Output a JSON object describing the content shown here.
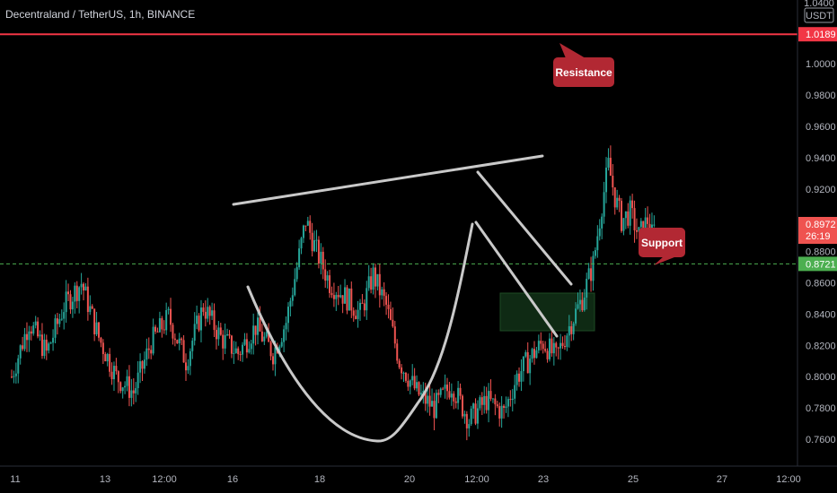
{
  "header": {
    "symbol_title": "Decentraland / TetherUS, 1h, BINANCE"
  },
  "price_axis": {
    "currency_label": "USDT",
    "top_partial_label": "1.0400",
    "ticks": [
      "1.0000",
      "0.9800",
      "0.9600",
      "0.9400",
      "0.9200",
      "0.8800",
      "0.8600",
      "0.8400",
      "0.8200",
      "0.8000",
      "0.7800",
      "0.7600"
    ]
  },
  "time_axis": {
    "ticks": [
      "11",
      "13",
      "12:00",
      "16",
      "18",
      "20",
      "12:00",
      "23",
      "25",
      "27",
      "12:00"
    ]
  },
  "tags": {
    "resistance_price": "1.0189",
    "last_price": "0.8972",
    "countdown": "26:19",
    "support_price": "0.8721"
  },
  "callouts": {
    "resistance": "Resistance",
    "support": "Support"
  },
  "colors": {
    "background": "#000000",
    "up_candle": "#26a69a",
    "down_candle": "#ef5350",
    "resistance_line": "#f23645",
    "support_line": "#4caf50",
    "callout_bg": "#b22833",
    "drawing_line": "#c9c9c9",
    "target_zone": "#0f2a14"
  },
  "chart_data": {
    "type": "candlestick",
    "title": "Decentraland / TetherUS, 1h, BINANCE",
    "ylabel": "USDT",
    "ylim": [
      0.75,
      1.04
    ],
    "x_ticks": [
      "11",
      "13",
      "12:00",
      "16",
      "18",
      "20",
      "12:00",
      "23",
      "25",
      "27",
      "12:00"
    ],
    "resistance_level": 1.0189,
    "support_level": 0.8721,
    "last_price": 0.8972,
    "annotations": [
      "Resistance",
      "Support"
    ],
    "close_path": [
      {
        "t": 0.0,
        "price": 0.8
      },
      {
        "t": 0.4,
        "price": 0.835
      },
      {
        "t": 0.8,
        "price": 0.815
      },
      {
        "t": 1.2,
        "price": 0.845
      },
      {
        "t": 1.6,
        "price": 0.86
      },
      {
        "t": 2.0,
        "price": 0.825
      },
      {
        "t": 2.4,
        "price": 0.8
      },
      {
        "t": 2.8,
        "price": 0.79
      },
      {
        "t": 3.2,
        "price": 0.822
      },
      {
        "t": 3.6,
        "price": 0.838
      },
      {
        "t": 4.0,
        "price": 0.81
      },
      {
        "t": 4.4,
        "price": 0.845
      },
      {
        "t": 4.8,
        "price": 0.825
      },
      {
        "t": 5.2,
        "price": 0.815
      },
      {
        "t": 5.6,
        "price": 0.832
      },
      {
        "t": 6.0,
        "price": 0.815
      },
      {
        "t": 6.3,
        "price": 0.835
      },
      {
        "t": 6.55,
        "price": 0.87
      },
      {
        "t": 6.75,
        "price": 0.9
      },
      {
        "t": 7.0,
        "price": 0.88
      },
      {
        "t": 7.3,
        "price": 0.86
      },
      {
        "t": 7.7,
        "price": 0.85
      },
      {
        "t": 8.0,
        "price": 0.84
      },
      {
        "t": 8.3,
        "price": 0.865
      },
      {
        "t": 8.6,
        "price": 0.845
      },
      {
        "t": 8.9,
        "price": 0.81
      },
      {
        "t": 9.3,
        "price": 0.79
      },
      {
        "t": 9.7,
        "price": 0.78
      },
      {
        "t": 10.1,
        "price": 0.795
      },
      {
        "t": 10.5,
        "price": 0.772
      },
      {
        "t": 10.9,
        "price": 0.785
      },
      {
        "t": 11.3,
        "price": 0.777
      },
      {
        "t": 11.6,
        "price": 0.8
      },
      {
        "t": 11.9,
        "price": 0.812
      },
      {
        "t": 12.2,
        "price": 0.822
      },
      {
        "t": 12.5,
        "price": 0.812
      },
      {
        "t": 12.8,
        "price": 0.832
      },
      {
        "t": 13.1,
        "price": 0.85
      },
      {
        "t": 13.35,
        "price": 0.872
      },
      {
        "t": 13.55,
        "price": 0.91
      },
      {
        "t": 13.7,
        "price": 0.935
      },
      {
        "t": 13.85,
        "price": 0.915
      },
      {
        "t": 14.0,
        "price": 0.9
      },
      {
        "t": 14.2,
        "price": 0.905
      },
      {
        "t": 14.4,
        "price": 0.89
      },
      {
        "t": 14.6,
        "price": 0.9
      },
      {
        "t": 14.75,
        "price": 0.897
      }
    ]
  }
}
